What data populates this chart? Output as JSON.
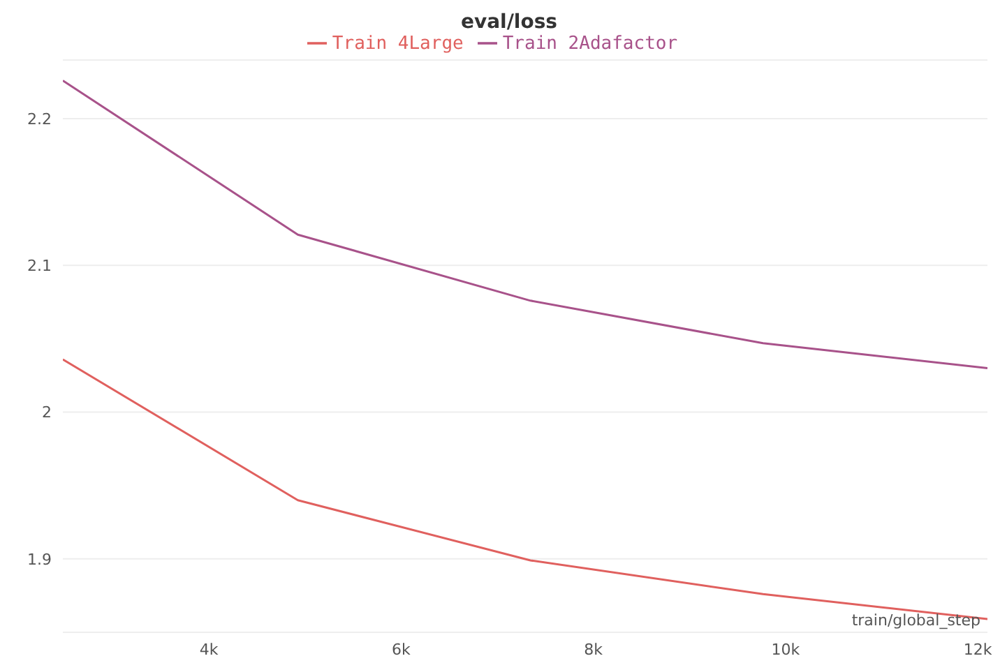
{
  "chart_data": {
    "type": "line",
    "title": "eval/loss",
    "xlabel": "train/global_step",
    "xlim": [
      2480,
      12100
    ],
    "xticks": [
      {
        "value": 4000,
        "label": "4k"
      },
      {
        "value": 6000,
        "label": "6k"
      },
      {
        "value": 8000,
        "label": "8k"
      },
      {
        "value": 10000,
        "label": "10k"
      },
      {
        "value": 12000,
        "label": "12k"
      }
    ],
    "ylim": [
      1.85,
      2.24
    ],
    "yticks": [
      1.9,
      2,
      2.1,
      2.2
    ],
    "x": [
      2480,
      4925,
      7345,
      9765,
      12100
    ],
    "series": [
      {
        "name": "Train 4Large",
        "color": "#e0605e",
        "values": [
          2.036,
          1.94,
          1.899,
          1.876,
          1.859
        ]
      },
      {
        "name": "Train 2Adafactor",
        "color": "#a8528a",
        "values": [
          2.226,
          2.121,
          2.076,
          2.047,
          2.03
        ]
      }
    ],
    "grid": "y",
    "legend": "top",
    "marker": "none",
    "line_style": "solid"
  }
}
